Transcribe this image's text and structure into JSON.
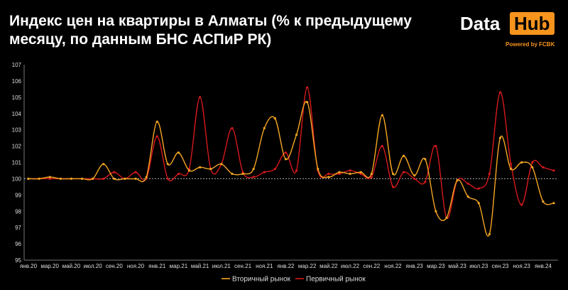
{
  "title": "Индекс цен на квартиры в Алматы (% к предыдущему месяцу, по данным БНС АСПиР РК)",
  "logo": {
    "data": "Data",
    "hub": "Hub",
    "powered": "Powered by FCBK"
  },
  "colors": {
    "secondary": "#f5a623",
    "primary": "#d7191c",
    "baseline": "#bbbbbb",
    "background": "#000000"
  },
  "chart_data": {
    "type": "line",
    "title": "Индекс цен на квартиры в Алматы (% к предыдущему месяцу, по данным БНС АСПиР РК)",
    "ylim": [
      95,
      107
    ],
    "yticks": [
      95,
      96,
      97,
      98,
      99,
      100,
      101,
      102,
      103,
      104,
      105,
      106,
      107
    ],
    "categories": [
      "янв.20",
      "фев.20",
      "мар.20",
      "апр.20",
      "май.20",
      "июн.20",
      "июл.20",
      "авг.20",
      "сен.20",
      "окт.20",
      "ноя.20",
      "дек.20",
      "янв.21",
      "фев.21",
      "мар.21",
      "апр.21",
      "май.21",
      "июн.21",
      "июл.21",
      "авг.21",
      "сен.21",
      "окт.21",
      "ноя.21",
      "дек.21",
      "янв.22",
      "фев.22",
      "мар.22",
      "апр.22",
      "май.22",
      "июн.22",
      "июл.22",
      "авг.22",
      "сен.22",
      "окт.22",
      "ноя.22",
      "дек.22",
      "янв.23",
      "фев.23",
      "мар.23",
      "апр.23",
      "май.23",
      "июн.23",
      "июл.23",
      "авг.23",
      "сен.23",
      "окт.23",
      "ноя.23",
      "дек.23",
      "янв.24",
      "фев.24"
    ],
    "xtick_labels": [
      "янв.20",
      "мар.20",
      "май.20",
      "июл.20",
      "сен.20",
      "ноя.20",
      "янв.21",
      "мар.21",
      "май.21",
      "июл.21",
      "сен.21",
      "ноя.21",
      "янв.22",
      "мар.22",
      "май.22",
      "июл.22",
      "сен.22",
      "ноя.22",
      "янв.23",
      "мар.23",
      "май.23",
      "июл.23",
      "сен.23",
      "ноя.23",
      "янв.24"
    ],
    "reference_line": 100,
    "legend_position": "bottom",
    "series": [
      {
        "name": "Вторичный рынок",
        "color": "#f5a623",
        "values": [
          100.0,
          100.0,
          100.1,
          100.0,
          100.0,
          100.0,
          100.0,
          100.9,
          100.0,
          100.0,
          100.0,
          100.1,
          103.5,
          100.9,
          101.6,
          100.5,
          100.7,
          100.6,
          100.9,
          100.3,
          100.3,
          100.6,
          103.1,
          103.7,
          101.2,
          102.7,
          104.7,
          100.6,
          100.1,
          100.4,
          100.3,
          100.4,
          100.3,
          103.9,
          100.3,
          101.4,
          100.2,
          101.2,
          98.0,
          97.6,
          99.9,
          98.9,
          98.5,
          96.6,
          102.5,
          100.6,
          101.0,
          100.7,
          98.6,
          98.5
        ]
      },
      {
        "name": "Первичный рынок",
        "color": "#d7191c",
        "values": [
          100.0,
          100.0,
          100.0,
          100.0,
          100.0,
          100.0,
          100.0,
          100.0,
          100.4,
          100.0,
          100.4,
          100.0,
          102.6,
          100.0,
          100.3,
          100.6,
          105.0,
          100.6,
          100.9,
          103.1,
          100.4,
          100.1,
          100.4,
          100.6,
          101.6,
          100.5,
          105.6,
          100.5,
          100.3,
          100.3,
          100.5,
          100.3,
          100.1,
          102.0,
          99.5,
          100.4,
          100.0,
          99.8,
          102.0,
          97.6,
          99.9,
          99.7,
          99.4,
          100.3,
          105.3,
          100.9,
          98.4,
          101.0,
          100.7,
          100.5
        ]
      }
    ]
  }
}
